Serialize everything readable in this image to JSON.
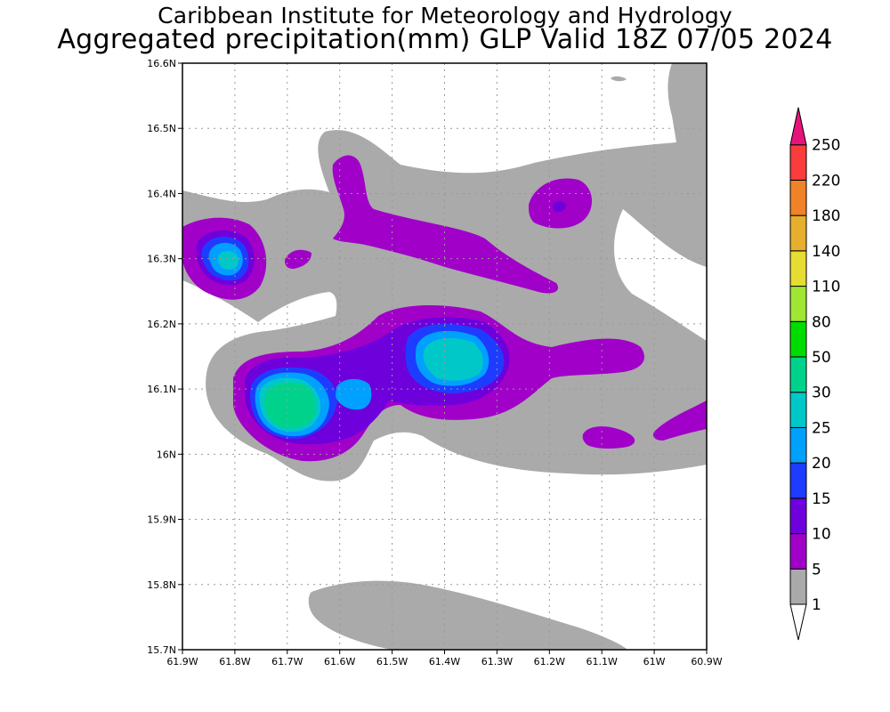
{
  "title": {
    "line1": "Caribbean Institute for Meteorology and Hydrology",
    "line2": "Aggregated precipitation(mm) GLP Valid 18Z 07/05 2024"
  },
  "map": {
    "lon_range": [
      -61.9,
      -60.9
    ],
    "lat_range": [
      15.7,
      16.6
    ],
    "grid_lines": true,
    "lon_ticks": [
      {
        "value": -61.9,
        "label": "61.9W"
      },
      {
        "value": -61.8,
        "label": "61.8W"
      },
      {
        "value": -61.7,
        "label": "61.7W"
      },
      {
        "value": -61.6,
        "label": "61.6W"
      },
      {
        "value": -61.5,
        "label": "61.5W"
      },
      {
        "value": -61.4,
        "label": "61.4W"
      },
      {
        "value": -61.3,
        "label": "61.3W"
      },
      {
        "value": -61.2,
        "label": "61.2W"
      },
      {
        "value": -61.1,
        "label": "61.1W"
      },
      {
        "value": -61.0,
        "label": "61W"
      },
      {
        "value": -60.9,
        "label": "60.9W"
      }
    ],
    "lat_ticks": [
      {
        "value": 16.6,
        "label": "16.6N"
      },
      {
        "value": 16.5,
        "label": "16.5N"
      },
      {
        "value": 16.4,
        "label": "16.4N"
      },
      {
        "value": 16.3,
        "label": "16.3N"
      },
      {
        "value": 16.2,
        "label": "16.2N"
      },
      {
        "value": 16.1,
        "label": "16.1N"
      },
      {
        "value": 16.0,
        "label": "16N"
      },
      {
        "value": 15.9,
        "label": "15.9N"
      },
      {
        "value": 15.8,
        "label": "15.8N"
      },
      {
        "value": 15.7,
        "label": "15.7N"
      }
    ]
  },
  "colorbar": {
    "levels": [
      {
        "label": "1",
        "color": "#aaaaaa"
      },
      {
        "label": "5",
        "color": "#a000c8"
      },
      {
        "label": "10",
        "color": "#6e00dc"
      },
      {
        "label": "15",
        "color": "#1e3cff"
      },
      {
        "label": "20",
        "color": "#00a0ff"
      },
      {
        "label": "25",
        "color": "#00c8c8"
      },
      {
        "label": "30",
        "color": "#00d28c"
      },
      {
        "label": "50",
        "color": "#00dc00"
      },
      {
        "label": "80",
        "color": "#a0e632"
      },
      {
        "label": "110",
        "color": "#e6dc32"
      },
      {
        "label": "140",
        "color": "#e6af2d"
      },
      {
        "label": "180",
        "color": "#f08228"
      },
      {
        "label": "220",
        "color": "#fa3c3c"
      },
      {
        "label": "250",
        "color": "#f00082"
      }
    ],
    "top_color": "#e6147a",
    "bottom_color": "#ffffff"
  },
  "colors": {
    "c1": "#aaaaaa",
    "c5": "#a000c8",
    "c10": "#6e00dc",
    "c15": "#1e3cff",
    "c20": "#00a0ff",
    "c25": "#00c8c8",
    "c30": "#00d28c"
  }
}
